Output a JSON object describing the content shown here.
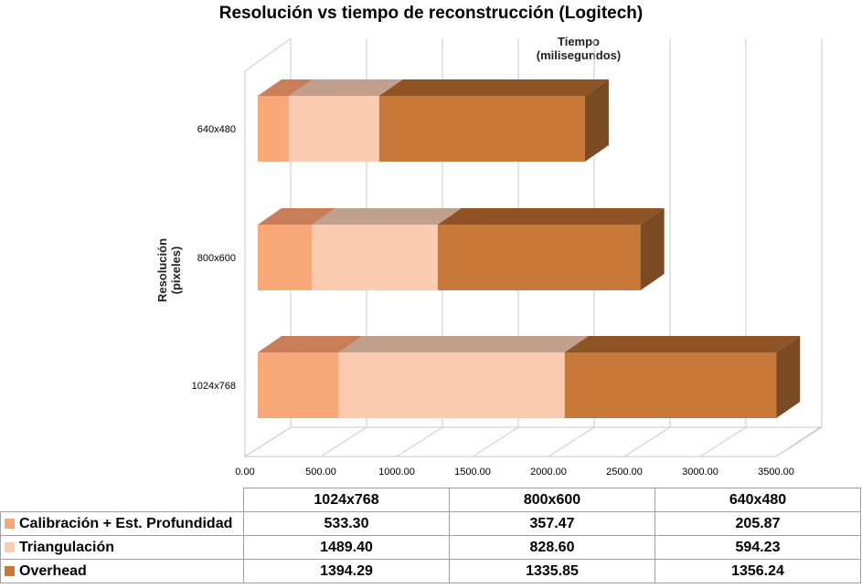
{
  "chart_data": {
    "type": "bar",
    "orientation": "horizontal",
    "stacked": true,
    "style": "3d",
    "title": "Resolución vs tiempo de reconstrucción (Logitech)",
    "xlabel_line1": "Tiempo",
    "xlabel_line2": "(milisegundos)",
    "ylabel_line1": "Resolución",
    "ylabel_line2": "(pixeles)",
    "categories": [
      "1024x768",
      "800x600",
      "640x480"
    ],
    "xlim": [
      0,
      3500
    ],
    "xticks": [
      "0.00",
      "500.00",
      "1000.00",
      "1500.00",
      "2000.00",
      "2500.00",
      "3000.00",
      "3500.00"
    ],
    "grid": true,
    "legend": "table-below",
    "series": [
      {
        "name": "Calibración + Est. Profundidad",
        "values": [
          533.3,
          357.47,
          205.87
        ],
        "labels": [
          "533.30",
          "357.47",
          "205.87"
        ],
        "color": "#F8A878",
        "top": "#C87E58",
        "side": "#B06A40"
      },
      {
        "name": "Triangulación",
        "values": [
          1489.4,
          828.6,
          594.23
        ],
        "labels": [
          "1489.40",
          "828.60",
          "594.23"
        ],
        "color": "#FBCBB2",
        "top": "#C2A08E",
        "side": "#A88A78"
      },
      {
        "name": "Overhead",
        "values": [
          1394.29,
          1335.85,
          1356.24
        ],
        "labels": [
          "1394.29",
          "1335.85",
          "1356.24"
        ],
        "color": "#C87838",
        "top": "#8E5426",
        "side": "#7A4A22"
      }
    ]
  }
}
